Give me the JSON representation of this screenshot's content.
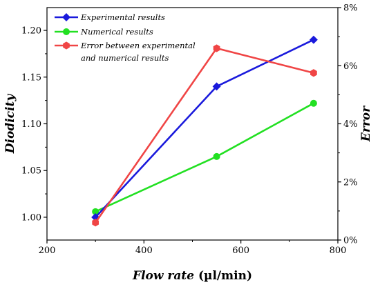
{
  "chart_data": {
    "type": "line",
    "xlabel_italic": "Flow rate",
    "xlabel_unit": "(µl/min)",
    "ylabel_left": "Diodicity",
    "ylabel_right": "Error",
    "xlim": [
      200,
      800
    ],
    "xticks": [
      200,
      400,
      600,
      800
    ],
    "ylim_left": [
      0.9756,
      1.2244
    ],
    "yticks_left": [
      "1.00",
      "1.05",
      "1.10",
      "1.15",
      "1.20"
    ],
    "yticks_left_values": [
      1.0,
      1.05,
      1.1,
      1.15,
      1.2
    ],
    "ylim_right": [
      0,
      8
    ],
    "yticks_right": [
      "0%",
      "2%",
      "4%",
      "6%",
      "8%"
    ],
    "yticks_right_values": [
      0,
      2,
      4,
      6,
      8
    ],
    "legend_position": "top-left",
    "series": [
      {
        "name": "Experimental results",
        "axis": "left",
        "color": "#1a1adc",
        "marker": "diamond",
        "x": [
          300,
          550,
          750
        ],
        "values": [
          1.0,
          1.14,
          1.19
        ]
      },
      {
        "name": "Numerical results",
        "axis": "left",
        "color": "#22e022",
        "marker": "circle",
        "x": [
          300,
          550,
          750
        ],
        "values": [
          1.006,
          1.065,
          1.122
        ]
      },
      {
        "name_lines": [
          "Error between experimental",
          "and numerical results"
        ],
        "axis": "right",
        "color": "#f04545",
        "marker": "hexagon",
        "x": [
          300,
          550,
          750
        ],
        "values": [
          0.6,
          6.6,
          5.75
        ]
      }
    ]
  }
}
